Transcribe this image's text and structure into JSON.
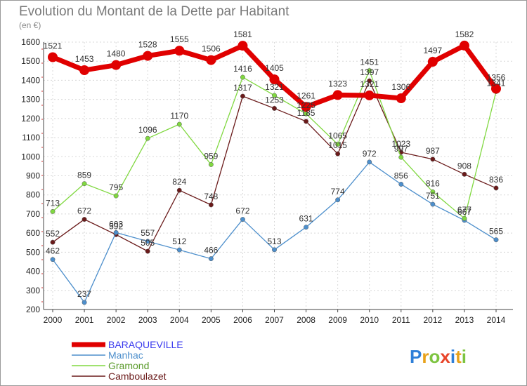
{
  "chart_data": {
    "type": "line",
    "title": "Evolution du Montant de la Dette par Habitant",
    "subtitle": "(en €)",
    "xlabel": "",
    "ylabel": "",
    "x": [
      "2000",
      "2001",
      "2002",
      "2003",
      "2004",
      "2005",
      "2006",
      "2007",
      "2008",
      "2009",
      "2010",
      "2011",
      "2012",
      "2013",
      "2014"
    ],
    "ylim": [
      200,
      1600
    ],
    "yticks": [
      "200",
      "300",
      "400",
      "500",
      "600",
      "700",
      "800",
      "900",
      "1000",
      "1100",
      "1200",
      "1300",
      "1400",
      "1500",
      "1600"
    ],
    "grid": true,
    "legend_position": "bottom-left",
    "series": [
      {
        "name": "BARAQUEVILLE",
        "color": "#e00000",
        "values": [
          1521,
          1453,
          1480,
          1528,
          1555,
          1506,
          1581,
          1405,
          1261,
          1323,
          1321,
          1306,
          1497,
          1582,
          1356
        ]
      },
      {
        "name": "Manhac",
        "color": "#4d8fcc",
        "values": [
          462,
          237,
          603,
          557,
          512,
          466,
          672,
          513,
          631,
          774,
          972,
          856,
          751,
          667,
          565
        ]
      },
      {
        "name": "Gramond",
        "color": "#80d840",
        "values": [
          713,
          859,
          795,
          1096,
          1170,
          959,
          1416,
          1321,
          1225,
          1065,
          1451,
          997,
          816,
          677,
          1341
        ]
      },
      {
        "name": "Camboulazet",
        "color": "#6a1a1a",
        "values": [
          552,
          672,
          592,
          505,
          824,
          748,
          1317,
          1253,
          1185,
          1015,
          1397,
          1023,
          987,
          908,
          836
        ]
      }
    ]
  },
  "legend": {
    "items": [
      "BARAQUEVILLE",
      "Manhac",
      "Gramond",
      "Camboulazet"
    ]
  },
  "brand": {
    "letters": [
      "P",
      "r",
      "o",
      "x",
      "i",
      "t",
      "i"
    ],
    "colors": [
      "#2e7fd8",
      "#e8a21a",
      "#7dc440",
      "#e8452a",
      "#2e7fd8",
      "#e8a21a",
      "#7dc440"
    ]
  }
}
